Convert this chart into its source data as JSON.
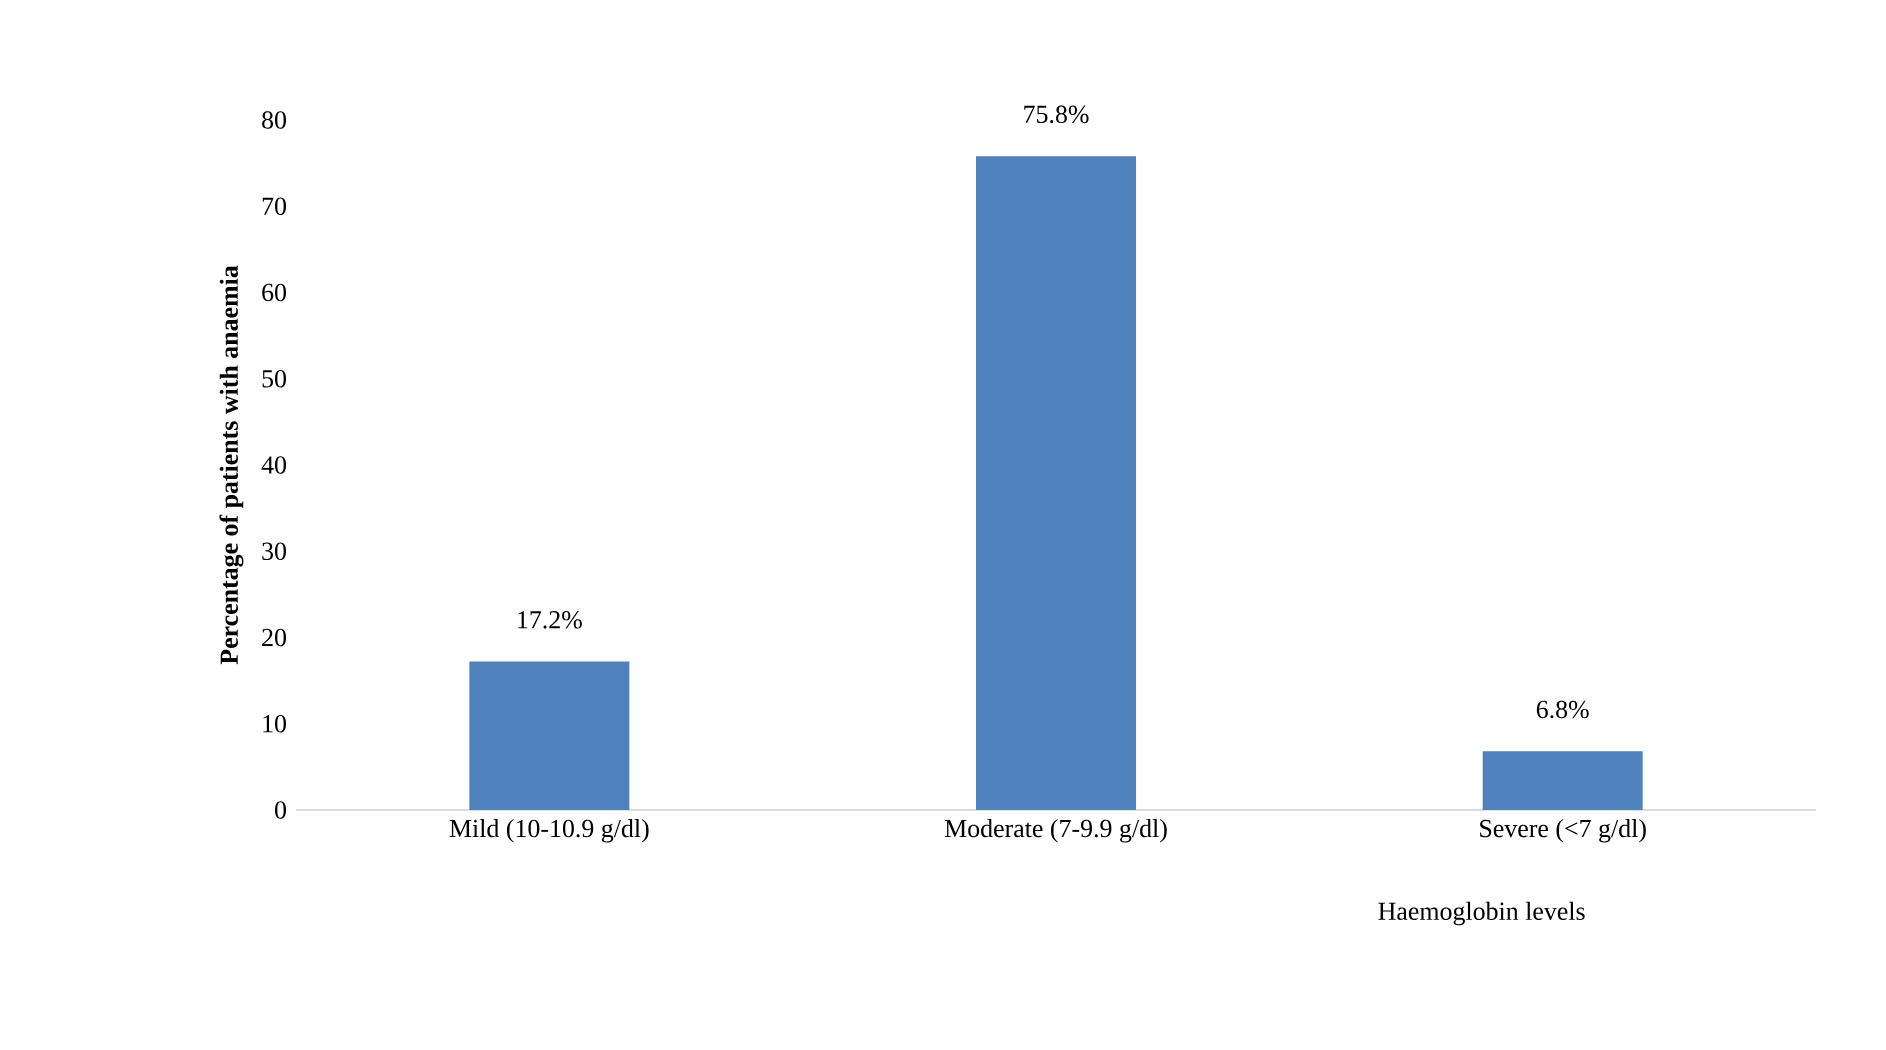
{
  "chart_data": {
    "type": "bar",
    "categories": [
      "Mild (10-10.9 g/dl)",
      "Moderate (7-9.9 g/dl)",
      "Severe (<7 g/dl)"
    ],
    "values": [
      17.2,
      75.8,
      6.8
    ],
    "color": "#4f81bd",
    "value_labels": [
      "17.2%",
      "75.8%",
      "6.8%"
    ],
    "ylim": [
      0,
      80
    ],
    "yticks": [
      0,
      10,
      20,
      30,
      40,
      50,
      60,
      70,
      80
    ],
    "xlabel": "Haemoglobin levels",
    "ylabel": "Percentage of patients with anaemia",
    "grid": false
  }
}
